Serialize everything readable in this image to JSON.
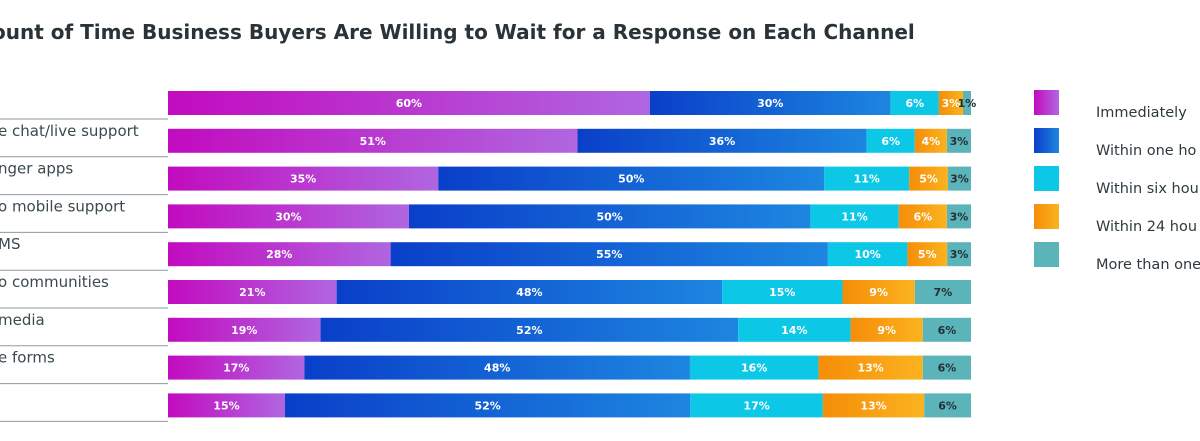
{
  "chart_data": {
    "type": "bar",
    "orientation": "horizontal",
    "stacked": true,
    "title": "ount of Time Business Buyers Are Willing to Wait for a Response on Each Channel",
    "categories": [
      "",
      "e chat/live support",
      "nger apps",
      "o mobile support",
      "MS",
      "o communities",
      " media",
      "e forms",
      ""
    ],
    "series": [
      {
        "name": "Immediately",
        "color_start": "#c20bbf",
        "color_end": "#b066e0",
        "values": [
          60,
          51,
          35,
          30,
          28,
          21,
          19,
          17,
          15
        ],
        "labels": [
          "60%",
          "51%",
          "35%",
          "30%",
          "28%",
          "21%",
          "19%",
          "17%",
          "15%"
        ]
      },
      {
        "name": "Within one ho",
        "color_start": "#0a3fc9",
        "color_end": "#1d86e0",
        "values": [
          30,
          36,
          50,
          50,
          55,
          48,
          52,
          48,
          52
        ],
        "labels": [
          "30%",
          "36%",
          "50%",
          "50%",
          "55%",
          "48%",
          "52%",
          "48%",
          "52%"
        ]
      },
      {
        "name": "Within six hou",
        "color_start": "#0cc8e6",
        "color_end": "#0cc8e6",
        "values": [
          6,
          6,
          11,
          11,
          10,
          15,
          14,
          16,
          17
        ],
        "labels": [
          "6%",
          "6%",
          "11%",
          "11%",
          "10%",
          "15%",
          "14%",
          "16%",
          "17%"
        ]
      },
      {
        "name": "Within 24 hou",
        "color_start": "#f58d08",
        "color_end": "#fbb31f",
        "values": [
          3,
          4,
          5,
          6,
          5,
          9,
          9,
          13,
          13
        ],
        "labels": [
          "3%",
          "4%",
          "5%",
          "6%",
          "5%",
          "9%",
          "9%",
          "13%",
          "13%"
        ]
      },
      {
        "name": "More than one",
        "color_start": "#5ab4ba",
        "color_end": "#5ab4ba",
        "values": [
          1,
          3,
          3,
          3,
          3,
          7,
          6,
          6,
          6
        ],
        "labels": [
          "1%",
          "3%",
          "3%",
          "3%",
          "3%",
          "7%",
          "6%",
          "6%",
          "6%"
        ]
      }
    ],
    "xlim": [
      0,
      100
    ],
    "legend_position": "right",
    "grid": false
  }
}
